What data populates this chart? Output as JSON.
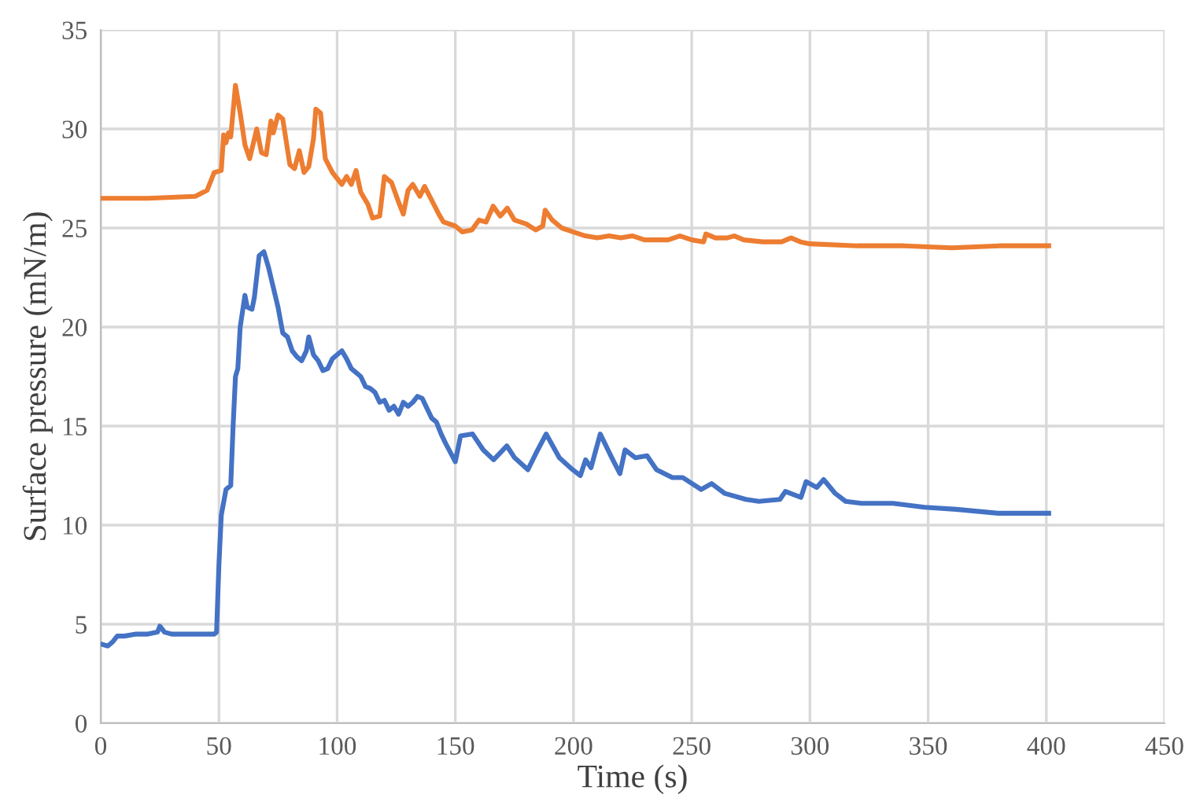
{
  "chart_data": {
    "type": "line",
    "xlabel": "Time (s)",
    "ylabel": "Surface pressure (mN/m)",
    "xlim": [
      0,
      450
    ],
    "xticks": [
      0,
      50,
      100,
      150,
      200,
      250,
      300,
      350,
      400,
      450
    ],
    "ylim": [
      0,
      35
    ],
    "yticks": [
      0,
      5,
      10,
      15,
      20,
      25,
      30,
      35
    ],
    "grid": true,
    "legend": false,
    "marker": "none",
    "line_style": "solid",
    "series": [
      {
        "color": "#ed7d31",
        "x": [
          0,
          20,
          40,
          45,
          48,
          51,
          52,
          53,
          54,
          55,
          57,
          59,
          61,
          63,
          66,
          68,
          70,
          72,
          73,
          75,
          77,
          80,
          82,
          84,
          86,
          88,
          90,
          91,
          93,
          95,
          98,
          100,
          102,
          104,
          106,
          108,
          110,
          113,
          115,
          118,
          120,
          123,
          126,
          128,
          130,
          132,
          135,
          137,
          140,
          143,
          145,
          150,
          153,
          157,
          160,
          163,
          166,
          169,
          172,
          175,
          180,
          184,
          187,
          188,
          191,
          195,
          200,
          205,
          210,
          215,
          220,
          225,
          230,
          240,
          245,
          250,
          255,
          256,
          260,
          265,
          268,
          272,
          280,
          288,
          292,
          296,
          300,
          320,
          340,
          360,
          380,
          401
        ],
        "values": [
          26.5,
          26.5,
          26.6,
          26.9,
          27.8,
          27.9,
          29.7,
          29.3,
          29.8,
          29.6,
          32.2,
          30.8,
          29.2,
          28.5,
          30.0,
          28.8,
          28.7,
          30.4,
          29.8,
          30.7,
          30.5,
          28.2,
          28.0,
          28.9,
          27.8,
          28.1,
          29.5,
          31.0,
          30.8,
          28.5,
          27.8,
          27.5,
          27.2,
          27.6,
          27.2,
          27.9,
          26.8,
          26.2,
          25.5,
          25.6,
          27.6,
          27.3,
          26.3,
          25.7,
          26.9,
          27.2,
          26.6,
          27.1,
          26.4,
          25.7,
          25.3,
          25.1,
          24.8,
          24.9,
          25.4,
          25.3,
          26.1,
          25.6,
          26.0,
          25.4,
          25.2,
          24.9,
          25.1,
          25.9,
          25.4,
          25.0,
          24.8,
          24.6,
          24.5,
          24.6,
          24.5,
          24.6,
          24.4,
          24.4,
          24.6,
          24.4,
          24.3,
          24.7,
          24.5,
          24.5,
          24.6,
          24.4,
          24.3,
          24.3,
          24.5,
          24.3,
          24.2,
          24.1,
          24.1,
          24.0,
          24.1,
          24.1
        ]
      },
      {
        "color": "#4472c4",
        "x": [
          0,
          3,
          5,
          7,
          10,
          15,
          20,
          24,
          25,
          27,
          30,
          40,
          48,
          49,
          50,
          51,
          53,
          55,
          56,
          57,
          58,
          59,
          60,
          61,
          62,
          64,
          65,
          67,
          69,
          71,
          73,
          75,
          77,
          79,
          81,
          83,
          85,
          87,
          88,
          90,
          92,
          94,
          96,
          98,
          100,
          102,
          104,
          106,
          108,
          110,
          112,
          114,
          116,
          118,
          120,
          122,
          124,
          126,
          128,
          130,
          132,
          134,
          136,
          138,
          140,
          142,
          144,
          146,
          150,
          152.2,
          157.3,
          161.8,
          166.2,
          171.8,
          175.1,
          180.7,
          184,
          188.4,
          194,
          199.6,
          202.9,
          205.1,
          207.4,
          211.3,
          216.2,
          219.6,
          221.8,
          226.2,
          231.1,
          235.1,
          241.8,
          246.2,
          254,
          258.4,
          264,
          272.9,
          278.4,
          287.3,
          289.6,
          296.2,
          298.4,
          302.9,
          305.8,
          310.7,
          315.1,
          321.8,
          335.1,
          348.4,
          361.8,
          379.6,
          388.4,
          401
        ],
        "values": [
          4.0,
          3.9,
          4.1,
          4.4,
          4.4,
          4.5,
          4.5,
          4.6,
          4.9,
          4.6,
          4.5,
          4.5,
          4.5,
          4.6,
          8.0,
          10.5,
          11.8,
          12.0,
          15.0,
          17.5,
          17.9,
          20.0,
          20.8,
          21.6,
          21.0,
          20.9,
          21.5,
          23.6,
          23.8,
          23.0,
          22.0,
          21.0,
          19.7,
          19.5,
          18.8,
          18.5,
          18.3,
          18.8,
          19.5,
          18.6,
          18.3,
          17.8,
          17.9,
          18.4,
          18.6,
          18.8,
          18.4,
          17.9,
          17.7,
          17.5,
          17.0,
          16.9,
          16.7,
          16.2,
          16.3,
          15.8,
          16.0,
          15.6,
          16.2,
          16.0,
          16.2,
          16.5,
          16.4,
          15.9,
          15.4,
          15.2,
          14.6,
          14.1,
          13.2,
          14.5,
          14.6,
          13.8,
          13.3,
          14.0,
          13.4,
          12.8,
          13.6,
          14.6,
          13.4,
          12.8,
          12.5,
          13.3,
          12.9,
          14.6,
          13.4,
          12.6,
          13.8,
          13.4,
          13.5,
          12.8,
          12.4,
          12.4,
          11.8,
          12.1,
          11.6,
          11.3,
          11.2,
          11.3,
          11.7,
          11.4,
          12.2,
          11.9,
          12.3,
          11.6,
          11.2,
          11.1,
          11.1,
          10.9,
          10.8,
          10.6,
          10.6,
          10.6
        ]
      }
    ]
  }
}
